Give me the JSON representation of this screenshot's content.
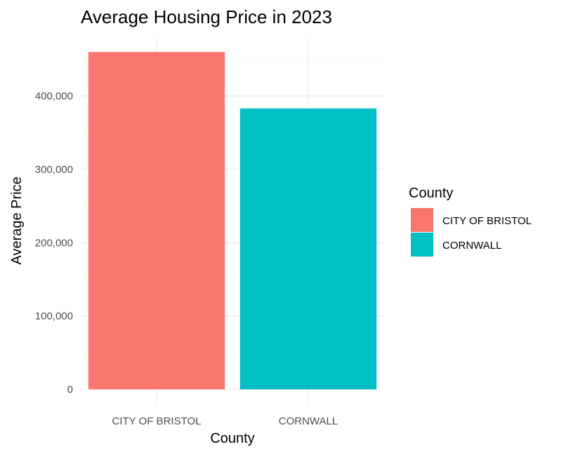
{
  "chart_data": {
    "type": "bar",
    "title": "Average Housing Price in 2023",
    "xlabel": "County",
    "ylabel": "Average Price",
    "categories": [
      "CITY OF BRISTOL",
      "CORNWALL"
    ],
    "values": [
      460000,
      383000
    ],
    "colors": [
      "#F8766D",
      "#00BFC4"
    ],
    "ylim": [
      0,
      460000
    ],
    "yticks": [
      0,
      100000,
      200000,
      300000,
      400000
    ],
    "ytick_labels": [
      "0",
      "100,000",
      "200,000",
      "300,000",
      "400,000"
    ],
    "grid": true,
    "legend": {
      "title": "County",
      "position": "right",
      "entries": [
        "CITY OF BRISTOL",
        "CORNWALL"
      ]
    }
  }
}
